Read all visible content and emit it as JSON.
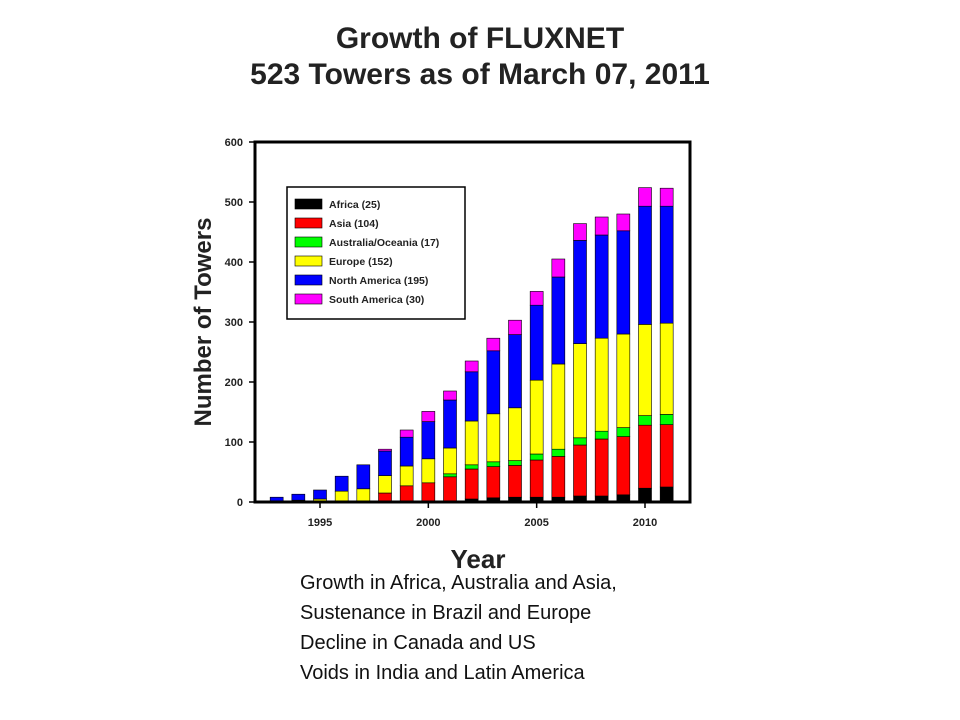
{
  "header": {
    "title": "Growth of FLUXNET",
    "subtitle": "523 Towers as of March 07, 2011"
  },
  "chart_data": {
    "type": "bar",
    "stacked": true,
    "xlabel": "Year",
    "ylabel": "Number of Towers",
    "ylim": [
      0,
      600
    ],
    "yticks": [
      0,
      100,
      200,
      300,
      400,
      500,
      600
    ],
    "xticks": [
      1995,
      2000,
      2005,
      2010
    ],
    "grid": false,
    "legend_position": "top-left",
    "categories": [
      1993,
      1994,
      1995,
      1996,
      1997,
      1998,
      1999,
      2000,
      2001,
      2002,
      2003,
      2004,
      2005,
      2006,
      2007,
      2008,
      2009,
      2010,
      2011
    ],
    "series": [
      {
        "name": "Africa (25)",
        "color": "#000000",
        "values": [
          0,
          0,
          0,
          0,
          0,
          0,
          0,
          0,
          2,
          5,
          7,
          8,
          8,
          8,
          10,
          10,
          12,
          23,
          25
        ]
      },
      {
        "name": "Asia (104)",
        "color": "#ff0000",
        "values": [
          0,
          0,
          0,
          0,
          0,
          15,
          27,
          32,
          40,
          50,
          52,
          53,
          62,
          68,
          85,
          95,
          97,
          105,
          104
        ]
      },
      {
        "name": "Australia/Oceania (17)",
        "color": "#00ff00",
        "values": [
          0,
          0,
          0,
          0,
          0,
          0,
          0,
          0,
          5,
          7,
          8,
          8,
          10,
          12,
          12,
          13,
          15,
          16,
          17
        ]
      },
      {
        "name": "Europe (152)",
        "color": "#ffff00",
        "values": [
          2,
          3,
          5,
          18,
          22,
          29,
          33,
          40,
          43,
          73,
          80,
          88,
          123,
          142,
          157,
          155,
          156,
          152,
          152
        ]
      },
      {
        "name": "North America (195)",
        "color": "#0000ff",
        "values": [
          6,
          10,
          15,
          25,
          40,
          41,
          48,
          62,
          80,
          82,
          105,
          122,
          125,
          145,
          172,
          172,
          172,
          197,
          195
        ]
      },
      {
        "name": "South America (30)",
        "color": "#ff00ff",
        "values": [
          0,
          0,
          0,
          0,
          0,
          3,
          12,
          17,
          15,
          18,
          21,
          24,
          23,
          30,
          28,
          30,
          28,
          31,
          30
        ]
      }
    ]
  },
  "notes": [
    "Growth in Africa, Australia and Asia,",
    "Sustenance in Brazil and Europe",
    "Decline in Canada and US",
    "Voids in India and Latin America"
  ]
}
